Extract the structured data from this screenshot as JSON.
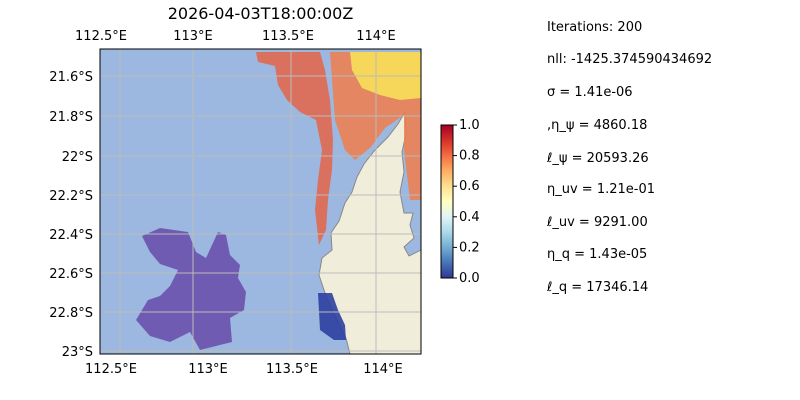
{
  "title": "2026-04-03T18:00:00Z",
  "lon_ticks": [
    "112.5°E",
    "113°E",
    "113.5°E",
    "114°E"
  ],
  "lat_ticks": [
    "21.6°S",
    "21.8°S",
    "22°S",
    "22.2°S",
    "22.4°S",
    "22.6°S",
    "22.8°S",
    "23°S"
  ],
  "colorbar": {
    "ticks": [
      "0.0",
      "0.2",
      "0.4",
      "0.6",
      "0.8",
      "1.0"
    ],
    "range": [
      0.0,
      1.0
    ],
    "colormap": [
      "#313695",
      "#4575b4",
      "#74add1",
      "#abd9e9",
      "#e0f3f8",
      "#ffffbf",
      "#fee090",
      "#fdae61",
      "#f46d43",
      "#d73027",
      "#a50026"
    ]
  },
  "colors": {
    "ocean": "#9cb8e0",
    "land": "#f0eedb",
    "coast": "#888888",
    "grid": "#bbbbbb"
  },
  "params": {
    "iterations": "Iterations: 200",
    "nll": "nll: -1425.374590434692",
    "sigma": "σ = 1.41e-06",
    "eta_psi": ",η_ψ = 4860.18",
    "ell_psi": "ℓ_ψ = 20593.26",
    "eta_uv": "η_uv = 1.21e-01",
    "ell_uv": "ℓ_uv = 9291.00",
    "eta_q": "η_q = 1.43e-05",
    "ell_q": "ℓ_q = 17346.14"
  }
}
